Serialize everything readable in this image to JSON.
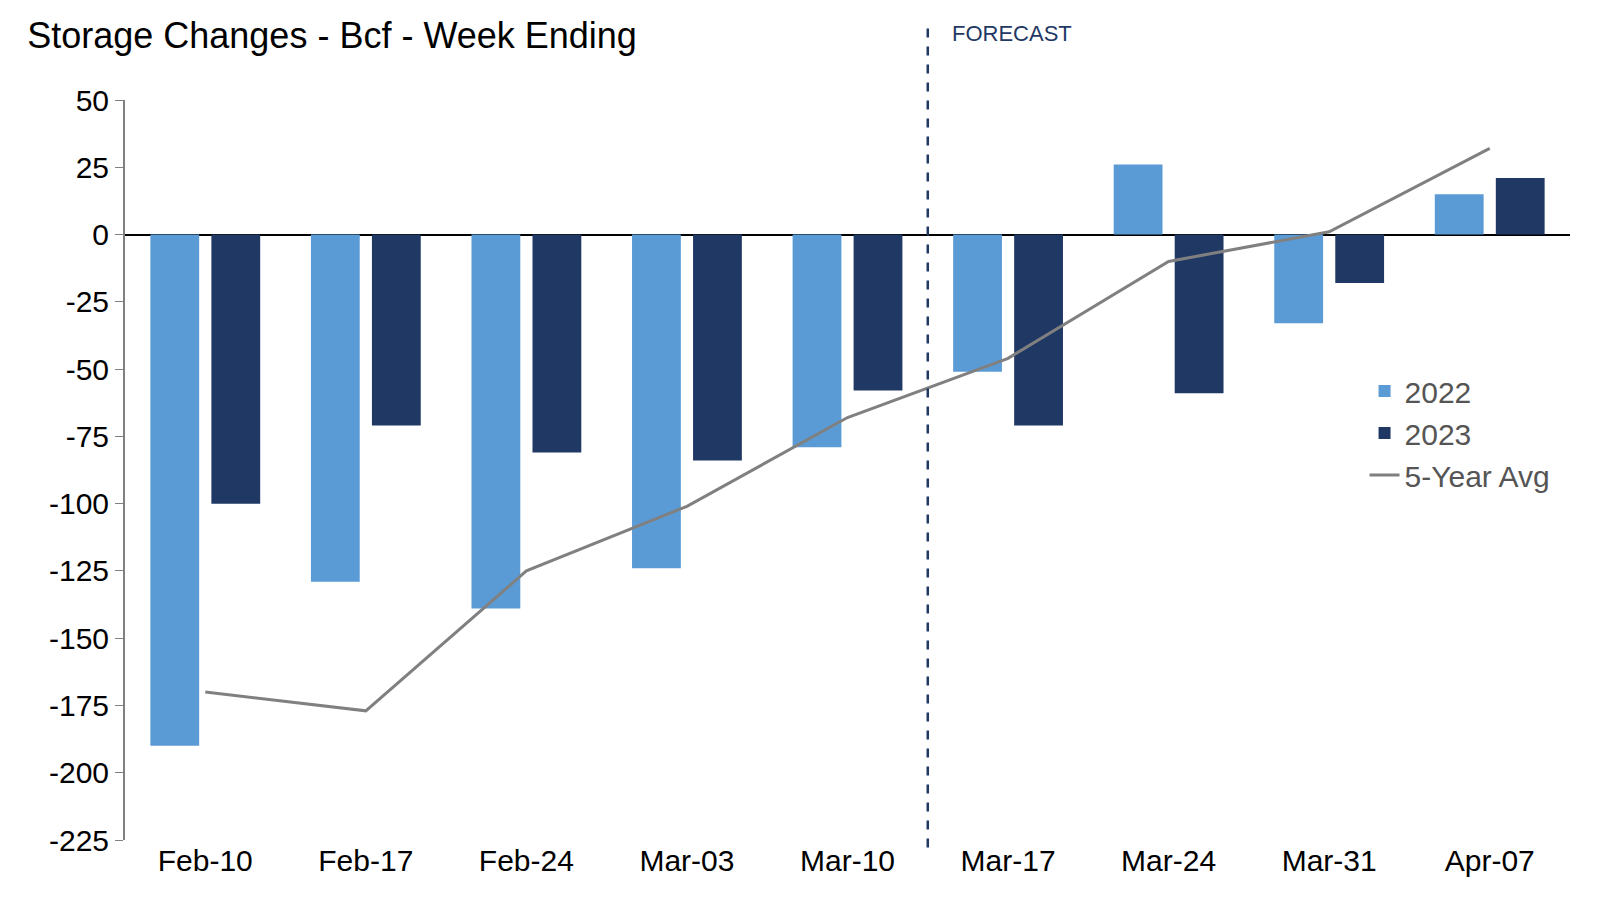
{
  "chart_data": {
    "type": "bar",
    "title": "Storage Changes - Bcf - Week Ending",
    "categories": [
      "Feb-10",
      "Feb-17",
      "Feb-24",
      "Mar-03",
      "Mar-10",
      "Mar-17",
      "Mar-24",
      "Mar-31",
      "Apr-07"
    ],
    "series": [
      {
        "name": "2022",
        "type": "bar",
        "color": "#5b9bd5",
        "values": [
          -190,
          -129,
          -139,
          -124,
          -79,
          -51,
          26,
          -33,
          15
        ]
      },
      {
        "name": "2023",
        "type": "bar",
        "color": "#203864",
        "values": [
          -100,
          -71,
          -81,
          -84,
          -58,
          -71,
          -59,
          -18,
          21
        ]
      },
      {
        "name": "5-Year Avg",
        "type": "line",
        "color": "#808080",
        "line_style": "solid",
        "values": [
          -170,
          -177,
          -125,
          -101,
          -68,
          -46,
          -10,
          1,
          32
        ]
      }
    ],
    "annotations": [
      {
        "text": "FORECAST",
        "x": "Mar-17"
      }
    ],
    "ylim": [
      -225,
      50
    ],
    "yticks": [
      -225,
      -200,
      -175,
      -150,
      -125,
      -100,
      -75,
      -50,
      -25,
      0,
      25,
      50
    ],
    "grid": false,
    "legend": "right"
  }
}
